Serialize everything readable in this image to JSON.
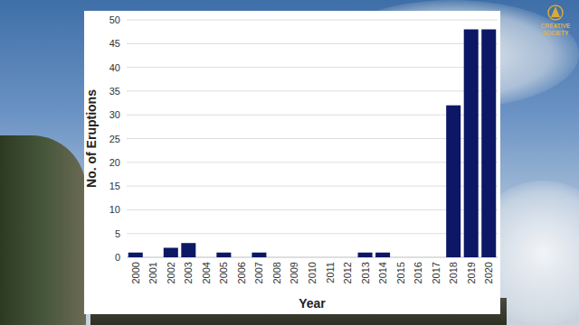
{
  "chart_data": {
    "type": "bar",
    "x_label": "Year",
    "y_label": "No. of Eruptions",
    "annotations": [
      "CREATIVE",
      "SOCIETY"
    ],
    "categories": [
      "2000",
      "2001",
      "2002",
      "2003",
      "2004",
      "2005",
      "2006",
      "2007",
      "2008",
      "2009",
      "2010",
      "2011",
      "2012",
      "2013",
      "2014",
      "2015",
      "2016",
      "2017",
      "2018",
      "2019",
      "2020"
    ],
    "values": [
      1,
      0,
      2,
      3,
      0,
      1,
      0,
      1,
      0,
      0,
      0,
      0,
      0,
      1,
      1,
      0,
      0,
      0,
      32,
      48,
      48
    ],
    "color": "#0c1766",
    "ylim": [
      0,
      50
    ],
    "yticks": [
      0,
      5,
      10,
      15,
      20,
      25,
      30,
      35,
      40,
      45,
      50
    ],
    "grid": true
  }
}
